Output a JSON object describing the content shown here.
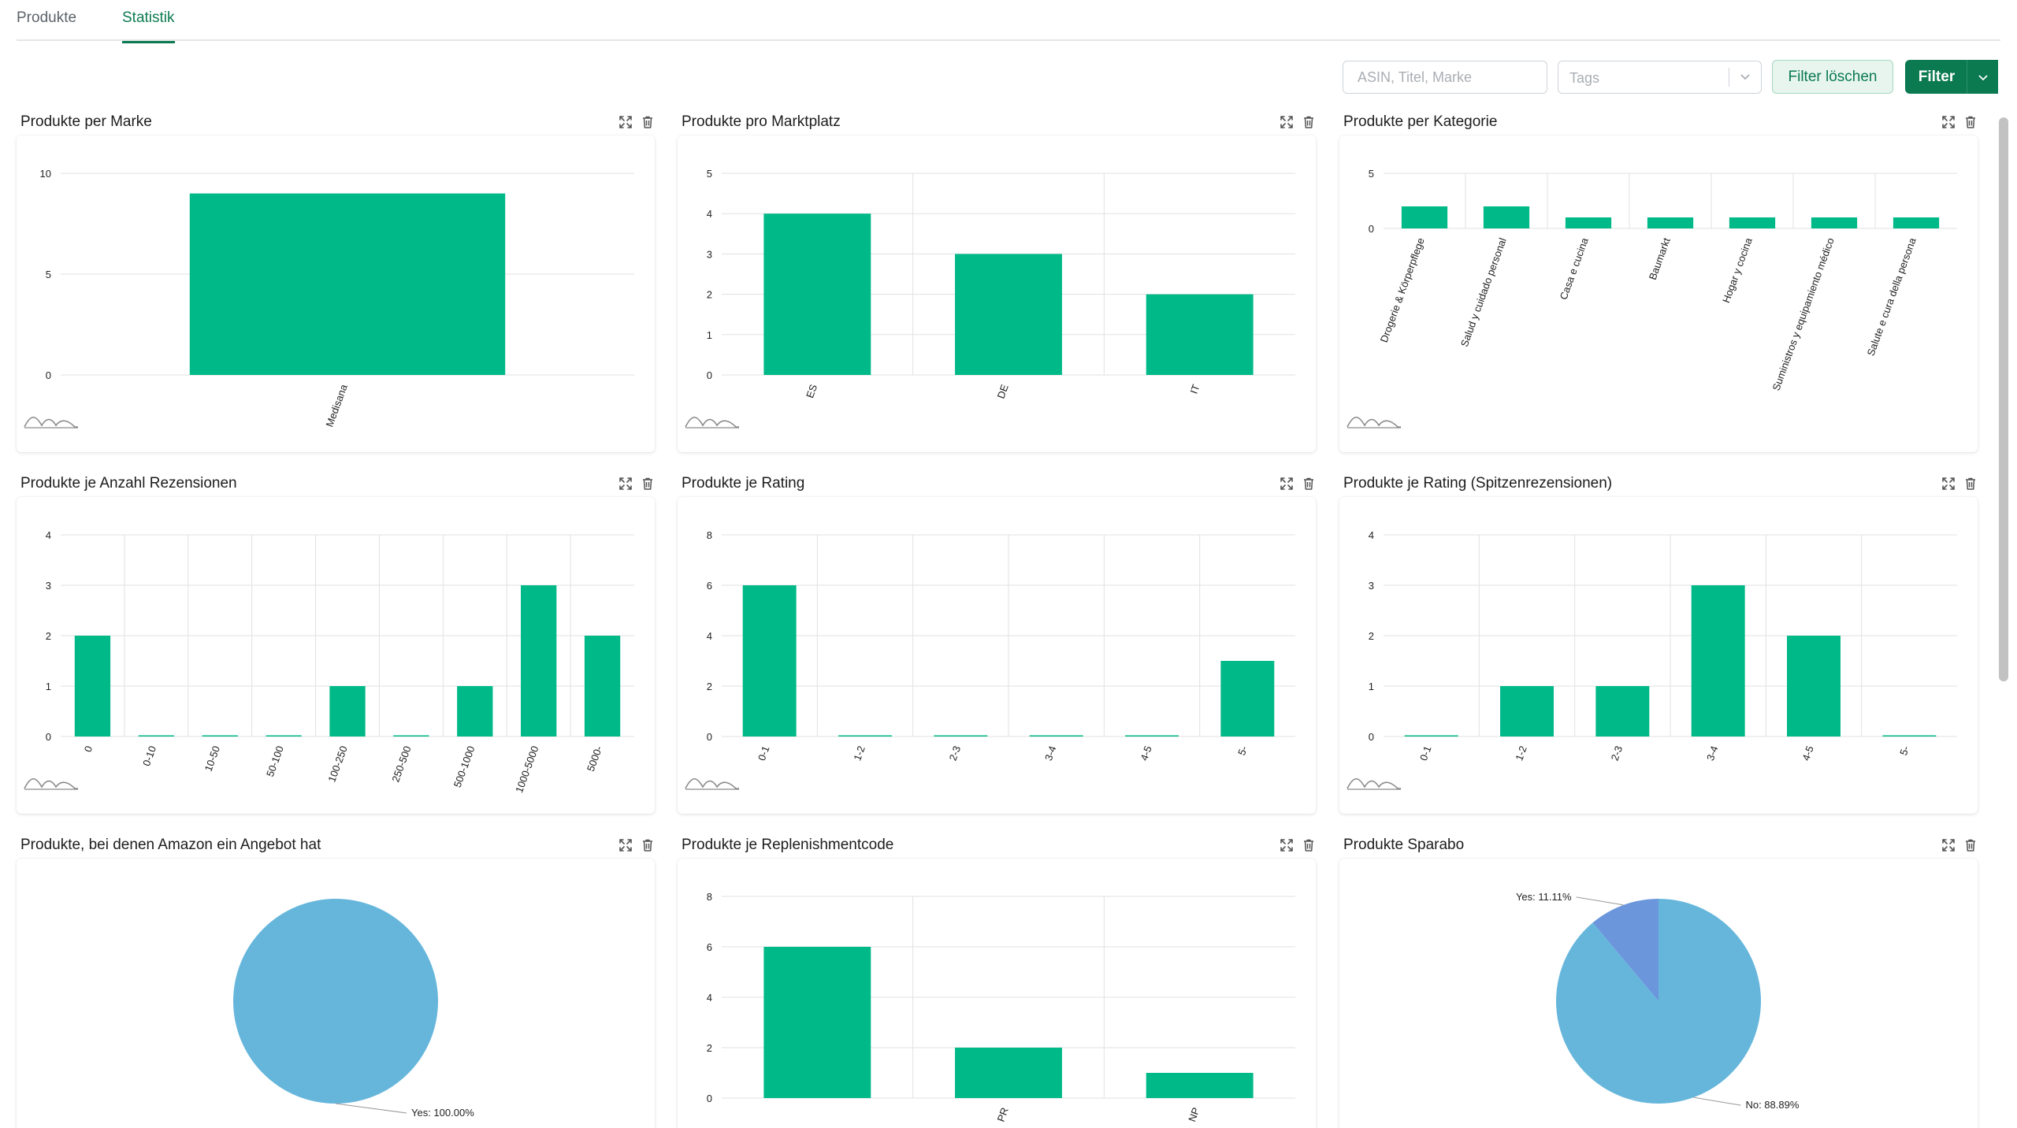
{
  "tabs": [
    {
      "label": "Produkte",
      "active": false
    },
    {
      "label": "Statistik",
      "active": true
    }
  ],
  "toolbar": {
    "search_placeholder": "ASIN, Titel, Marke",
    "search_value": "",
    "tags_placeholder": "Tags",
    "clear_label": "Filter löschen",
    "filter_label": "Filter"
  },
  "colors": {
    "accent": "#0b7a50",
    "bar": "#00b988",
    "pie_main": "#66b6dc",
    "pie_secondary": "#6b96dc",
    "grid": "#e1e1e1"
  },
  "icons": [
    "expand-icon",
    "trash-icon",
    "chevron-down-icon"
  ],
  "panels": [
    {
      "title": "Produkte per Marke"
    },
    {
      "title": "Produkte pro Marktplatz"
    },
    {
      "title": "Produkte per Kategorie"
    },
    {
      "title": "Produkte je Anzahl Rezensionen"
    },
    {
      "title": "Produkte je Rating"
    },
    {
      "title": "Produkte je Rating (Spitzenrezensionen)"
    },
    {
      "title": "Produkte, bei denen Amazon ein Angebot hat"
    },
    {
      "title": "Produkte je Replenishmentcode"
    },
    {
      "title": "Produkte Sparabo"
    }
  ],
  "chart_data": [
    {
      "type": "bar",
      "title": "Produkte per Marke",
      "categories": [
        "Medisana"
      ],
      "values": [
        9
      ],
      "ylim": [
        0,
        10
      ],
      "yticks": [
        0,
        5,
        10
      ],
      "grid": true
    },
    {
      "type": "bar",
      "title": "Produkte pro Marktplatz",
      "categories": [
        "ES",
        "DE",
        "IT"
      ],
      "values": [
        4,
        3,
        2
      ],
      "ylim": [
        0,
        5
      ],
      "yticks": [
        0,
        1,
        2,
        3,
        4,
        5
      ],
      "grid": true
    },
    {
      "type": "bar",
      "title": "Produkte per Kategorie",
      "categories": [
        "Drogerie & Körperpflege",
        "Salud y cuidado personal",
        "Casa e cucina",
        "Baumarkt",
        "Hogar y cocina",
        "Suministros y equipamiento médico",
        "Salute e cura della persona"
      ],
      "values": [
        2,
        2,
        1,
        1,
        1,
        1,
        1
      ],
      "ylim": [
        0,
        5
      ],
      "yticks": [
        0,
        5
      ],
      "grid": true
    },
    {
      "type": "bar",
      "title": "Produkte je Anzahl Rezensionen",
      "categories": [
        "0",
        "0-10",
        "10-50",
        "50-100",
        "100-250",
        "250-500",
        "500-1000",
        "1000-5000",
        "5000-"
      ],
      "values": [
        2,
        0,
        0,
        0,
        1,
        0,
        1,
        3,
        2
      ],
      "ylim": [
        0,
        4
      ],
      "yticks": [
        0,
        1,
        2,
        3,
        4
      ],
      "grid": true
    },
    {
      "type": "bar",
      "title": "Produkte je Rating",
      "categories": [
        "0-1",
        "1-2",
        "2-3",
        "3-4",
        "4-5",
        "5-"
      ],
      "values": [
        6,
        0,
        0,
        0,
        0,
        3
      ],
      "ylim": [
        0,
        8
      ],
      "yticks": [
        0,
        2,
        4,
        6,
        8
      ],
      "grid": true
    },
    {
      "type": "bar",
      "title": "Produkte je Rating (Spitzenrezensionen)",
      "categories": [
        "0-1",
        "1-2",
        "2-3",
        "3-4",
        "4-5",
        "5-"
      ],
      "values": [
        0,
        1,
        1,
        3,
        2,
        0
      ],
      "ylim": [
        0,
        4
      ],
      "yticks": [
        0,
        1,
        2,
        3,
        4
      ],
      "grid": true
    },
    {
      "type": "pie",
      "title": "Produkte, bei denen Amazon ein Angebot hat",
      "labels": [
        "Yes"
      ],
      "values": [
        100.0
      ],
      "data_labels": [
        "Yes: 100.00%"
      ]
    },
    {
      "type": "bar",
      "title": "Produkte je Replenishmentcode",
      "categories": [
        "",
        "PR",
        "NP"
      ],
      "values": [
        6,
        2,
        1
      ],
      "ylim": [
        0,
        8
      ],
      "yticks": [
        0,
        2,
        4,
        6,
        8
      ],
      "grid": true
    },
    {
      "type": "pie",
      "title": "Produkte Sparabo",
      "labels": [
        "Yes",
        "No"
      ],
      "values": [
        11.11,
        88.89
      ],
      "data_labels": [
        "Yes: 11.11%",
        "No: 88.89%"
      ]
    }
  ]
}
